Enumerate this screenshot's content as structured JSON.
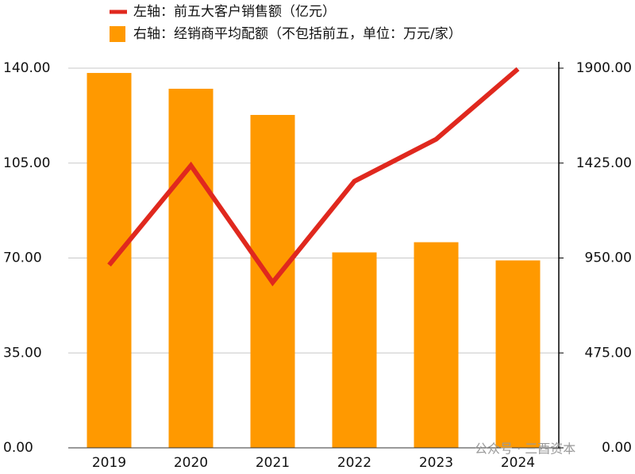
{
  "chart_data": {
    "type": "combo",
    "watermark": "公众号 · 三酉资本",
    "categories": [
      "2019",
      "2020",
      "2021",
      "2022",
      "2023",
      "2024"
    ],
    "series": [
      {
        "name": "右轴：经销商平均配额（不包括前五，单位：万元/家）",
        "type": "bar",
        "axis": "y2",
        "color": "#ff9900",
        "values": [
          1876,
          1797,
          1666,
          978,
          1029,
          938
        ]
      },
      {
        "name": "左轴：前五大客户销售额（亿元）",
        "type": "line",
        "axis": "y",
        "color": "#e0281e",
        "values": [
          67.4,
          104.1,
          61.0,
          98.3,
          113.8,
          139.7
        ]
      }
    ],
    "ylim": [
      0,
      140
    ],
    "yticks": [
      {
        "value": 0,
        "label": "0.00"
      },
      {
        "value": 35,
        "label": "35.00"
      },
      {
        "value": 70,
        "label": "70.00"
      },
      {
        "value": 105,
        "label": "105.00"
      },
      {
        "value": 140,
        "label": "140.00"
      }
    ],
    "y2lim": [
      0,
      1900
    ],
    "y2ticks": [
      {
        "value": 0,
        "label": "0.00"
      },
      {
        "value": 475,
        "label": "475.00"
      },
      {
        "value": 950,
        "label": "950.00"
      },
      {
        "value": 1425,
        "label": "1425.00"
      },
      {
        "value": 1900,
        "label": "1900.00"
      }
    ],
    "grid": true
  }
}
